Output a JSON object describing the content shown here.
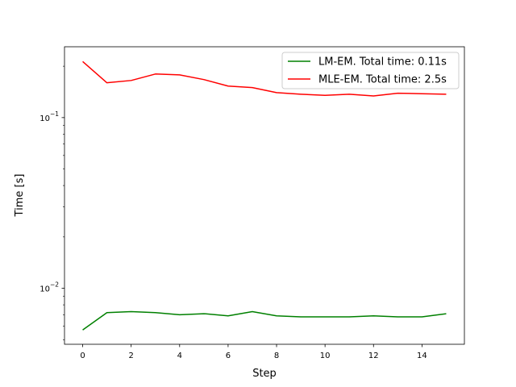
{
  "chart_data": {
    "type": "line",
    "title": "",
    "xlabel": "Step",
    "ylabel": "Time [s]",
    "x": [
      0,
      1,
      2,
      3,
      4,
      5,
      6,
      7,
      8,
      9,
      10,
      11,
      12,
      13,
      14,
      15
    ],
    "xlim": [
      -0.75,
      15.75
    ],
    "xticks": [
      0,
      2,
      4,
      6,
      8,
      10,
      12,
      14
    ],
    "xtick_labels": [
      "0",
      "2",
      "4",
      "6",
      "8",
      "10",
      "12",
      "14"
    ],
    "yscale": "log",
    "ylim": [
      0.0047,
      0.26
    ],
    "yticks": [
      0.01,
      0.1
    ],
    "ytick_labels": [
      "10^-2",
      "10^-1"
    ],
    "grid": false,
    "legend_position": "top-right",
    "series": [
      {
        "name": "LM-EM. Total time: 0.11s",
        "color": "#008000",
        "values": [
          0.0057,
          0.0072,
          0.0073,
          0.0072,
          0.007,
          0.0071,
          0.0069,
          0.0073,
          0.0069,
          0.0068,
          0.0068,
          0.0068,
          0.0069,
          0.0068,
          0.0068,
          0.0071
        ]
      },
      {
        "name": "MLE-EM. Total time: 2.5s",
        "color": "#ff0000",
        "values": [
          0.213,
          0.16,
          0.165,
          0.18,
          0.178,
          0.167,
          0.153,
          0.15,
          0.14,
          0.137,
          0.135,
          0.137,
          0.134,
          0.139,
          0.138,
          0.137
        ]
      }
    ]
  }
}
